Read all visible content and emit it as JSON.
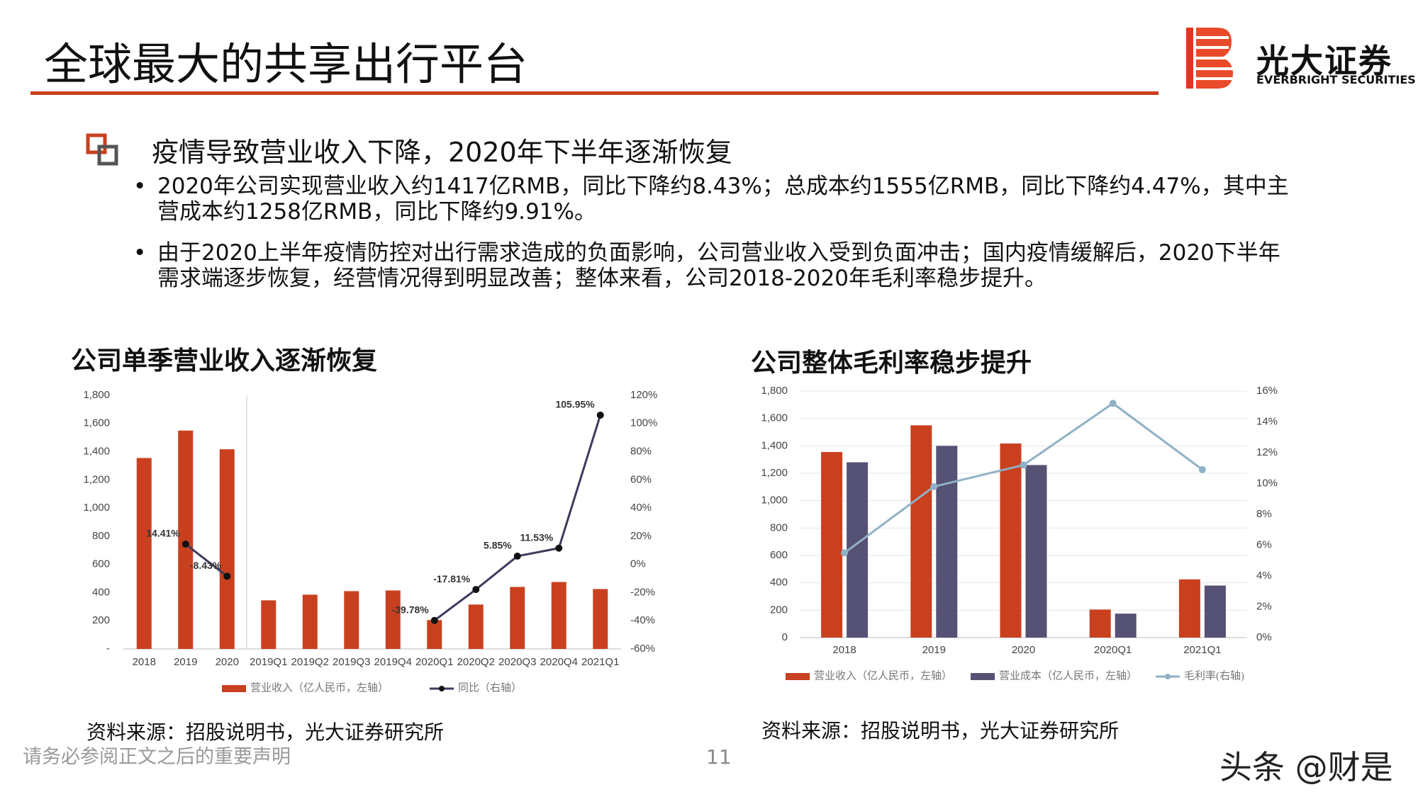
{
  "header": {
    "title": "全球最大的共享出行平台",
    "logo_name": "光大证券",
    "logo_en": "EVERBRIGHT SECURITIES"
  },
  "section": {
    "heading": "疫情导致营业收入下降，2020年下半年逐渐恢复",
    "bullets": [
      "2020年公司实现营业收入约1417亿RMB，同比下降约8.43%；总成本约1555亿RMB，同比下降约4.47%，其中主营成本约1258亿RMB，同比下降约9.91%。",
      "由于2020上半年疫情防控对出行需求造成的负面影响，公司营业收入受到负面冲击；国内疫情缓解后，2020下半年需求端逐步恢复，经营情况得到明显改善；整体来看，公司2018-2020年毛利率稳步提升。"
    ]
  },
  "chart_data": [
    {
      "type": "bar",
      "title": "公司单季营业收入逐渐恢复",
      "source": "资料来源：招股说明书，光大证券研究所",
      "grid": false,
      "categories": [
        "2018",
        "2019",
        "2020",
        "2019Q1",
        "2019Q2",
        "2019Q3",
        "2019Q4",
        "2020Q1",
        "2020Q2",
        "2020Q3",
        "2020Q4",
        "2021Q1"
      ],
      "series": [
        {
          "name": "营业收入（亿人民币，左轴）",
          "color": "#c9401f",
          "type": "bar",
          "values": [
            1355,
            1550,
            1417,
            345,
            385,
            410,
            415,
            205,
            315,
            440,
            475,
            425
          ]
        },
        {
          "name": "同比（右轴）",
          "color": "#3e3a5e",
          "type": "line",
          "axis": "y2",
          "values": [
            null,
            14.41,
            -8.43,
            null,
            null,
            null,
            null,
            -39.78,
            -17.81,
            5.85,
            11.53,
            105.95
          ],
          "value_labels": [
            null,
            "14.41%",
            "-8.43%",
            null,
            null,
            null,
            null,
            "-39.78%",
            "-17.81%",
            "5.85%",
            "11.53%",
            "105.95%"
          ]
        }
      ],
      "ylim": [
        0,
        1800
      ],
      "yticks": [
        {
          "value": 0,
          "label": "-"
        },
        200,
        400,
        600,
        800,
        {
          "value": 1000,
          "label": "1,000"
        },
        {
          "value": 1200,
          "label": "1,200"
        },
        {
          "value": 1400,
          "label": "1,400"
        },
        {
          "value": 1600,
          "label": "1,600"
        },
        {
          "value": 1800,
          "label": "1,800"
        }
      ],
      "y2lim": [
        -60,
        120
      ],
      "y2ticks": [
        {
          "value": -60,
          "label": "-60%"
        },
        {
          "value": -40,
          "label": "-40%"
        },
        {
          "value": -20,
          "label": "-20%"
        },
        {
          "value": 0,
          "label": "0%"
        },
        {
          "value": 20,
          "label": "20%"
        },
        {
          "value": 40,
          "label": "40%"
        },
        {
          "value": 60,
          "label": "60%"
        },
        {
          "value": 80,
          "label": "80%"
        },
        {
          "value": 100,
          "label": "100%"
        },
        {
          "value": 120,
          "label": "120%"
        }
      ]
    },
    {
      "type": "bar",
      "title": "公司整体毛利率稳步提升",
      "source": "资料来源：招股说明书，光大证券研究所",
      "grid": true,
      "categories": [
        "2018",
        "2019",
        "2020",
        "2020Q1",
        "2021Q1"
      ],
      "series": [
        {
          "name": "营业收入（亿人民币，左轴）",
          "color": "#c9401f",
          "type": "bar",
          "values": [
            1355,
            1550,
            1417,
            205,
            425
          ]
        },
        {
          "name": "营业成本（亿人民币，左轴）",
          "color": "#565275",
          "type": "bar",
          "values": [
            1280,
            1400,
            1260,
            175,
            380
          ]
        },
        {
          "name": "毛利率(右轴)",
          "color": "#8fb1c6",
          "type": "line",
          "axis": "y2",
          "values": [
            5.5,
            9.8,
            11.2,
            15.2,
            10.9
          ]
        }
      ],
      "ylim": [
        0,
        1800
      ],
      "yticks": [
        0,
        200,
        400,
        600,
        800,
        {
          "value": 1000,
          "label": "1,000"
        },
        {
          "value": 1200,
          "label": "1,200"
        },
        {
          "value": 1400,
          "label": "1,400"
        },
        {
          "value": 1600,
          "label": "1,600"
        },
        {
          "value": 1800,
          "label": "1,800"
        }
      ],
      "y2lim": [
        0,
        16
      ],
      "y2ticks": [
        {
          "value": 0,
          "label": "0%"
        },
        {
          "value": 2,
          "label": "2%"
        },
        {
          "value": 4,
          "label": "4%"
        },
        {
          "value": 6,
          "label": "6%"
        },
        {
          "value": 8,
          "label": "8%"
        },
        {
          "value": 10,
          "label": "10%"
        },
        {
          "value": 12,
          "label": "12%"
        },
        {
          "value": 14,
          "label": "14%"
        },
        {
          "value": 16,
          "label": "16%"
        }
      ]
    }
  ],
  "footer": {
    "disclaimer": "请务必参阅正文之后的重要声明",
    "page": 11,
    "watermark": "头条 @财是"
  }
}
